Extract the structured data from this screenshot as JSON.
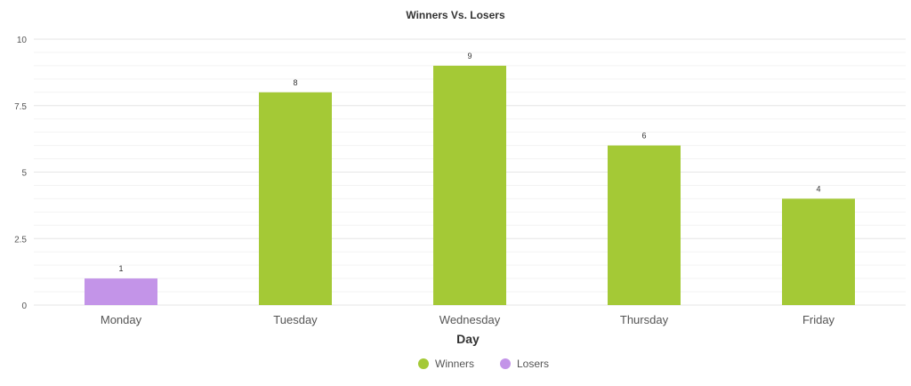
{
  "chart_data": {
    "type": "bar",
    "title": "Winners Vs. Losers",
    "xlabel": "Day",
    "ylabel": "",
    "ylim": [
      0,
      10
    ],
    "yticks": [
      "0",
      "2.5",
      "5",
      "7.5",
      "10"
    ],
    "ytick_values": [
      0,
      2.5,
      5,
      7.5,
      10
    ],
    "categories": [
      "Monday",
      "Tuesday",
      "Wednesday",
      "Thursday",
      "Friday"
    ],
    "series": [
      {
        "name": "Winners",
        "color": "#a4c936",
        "values": [
          null,
          8,
          9,
          6,
          4
        ]
      },
      {
        "name": "Losers",
        "color": "#c394e8",
        "values": [
          1,
          null,
          null,
          null,
          null
        ]
      }
    ],
    "data_labels": [
      "1",
      "8",
      "9",
      "6",
      "4"
    ],
    "grid": true,
    "legend_position": "bottom-center"
  }
}
